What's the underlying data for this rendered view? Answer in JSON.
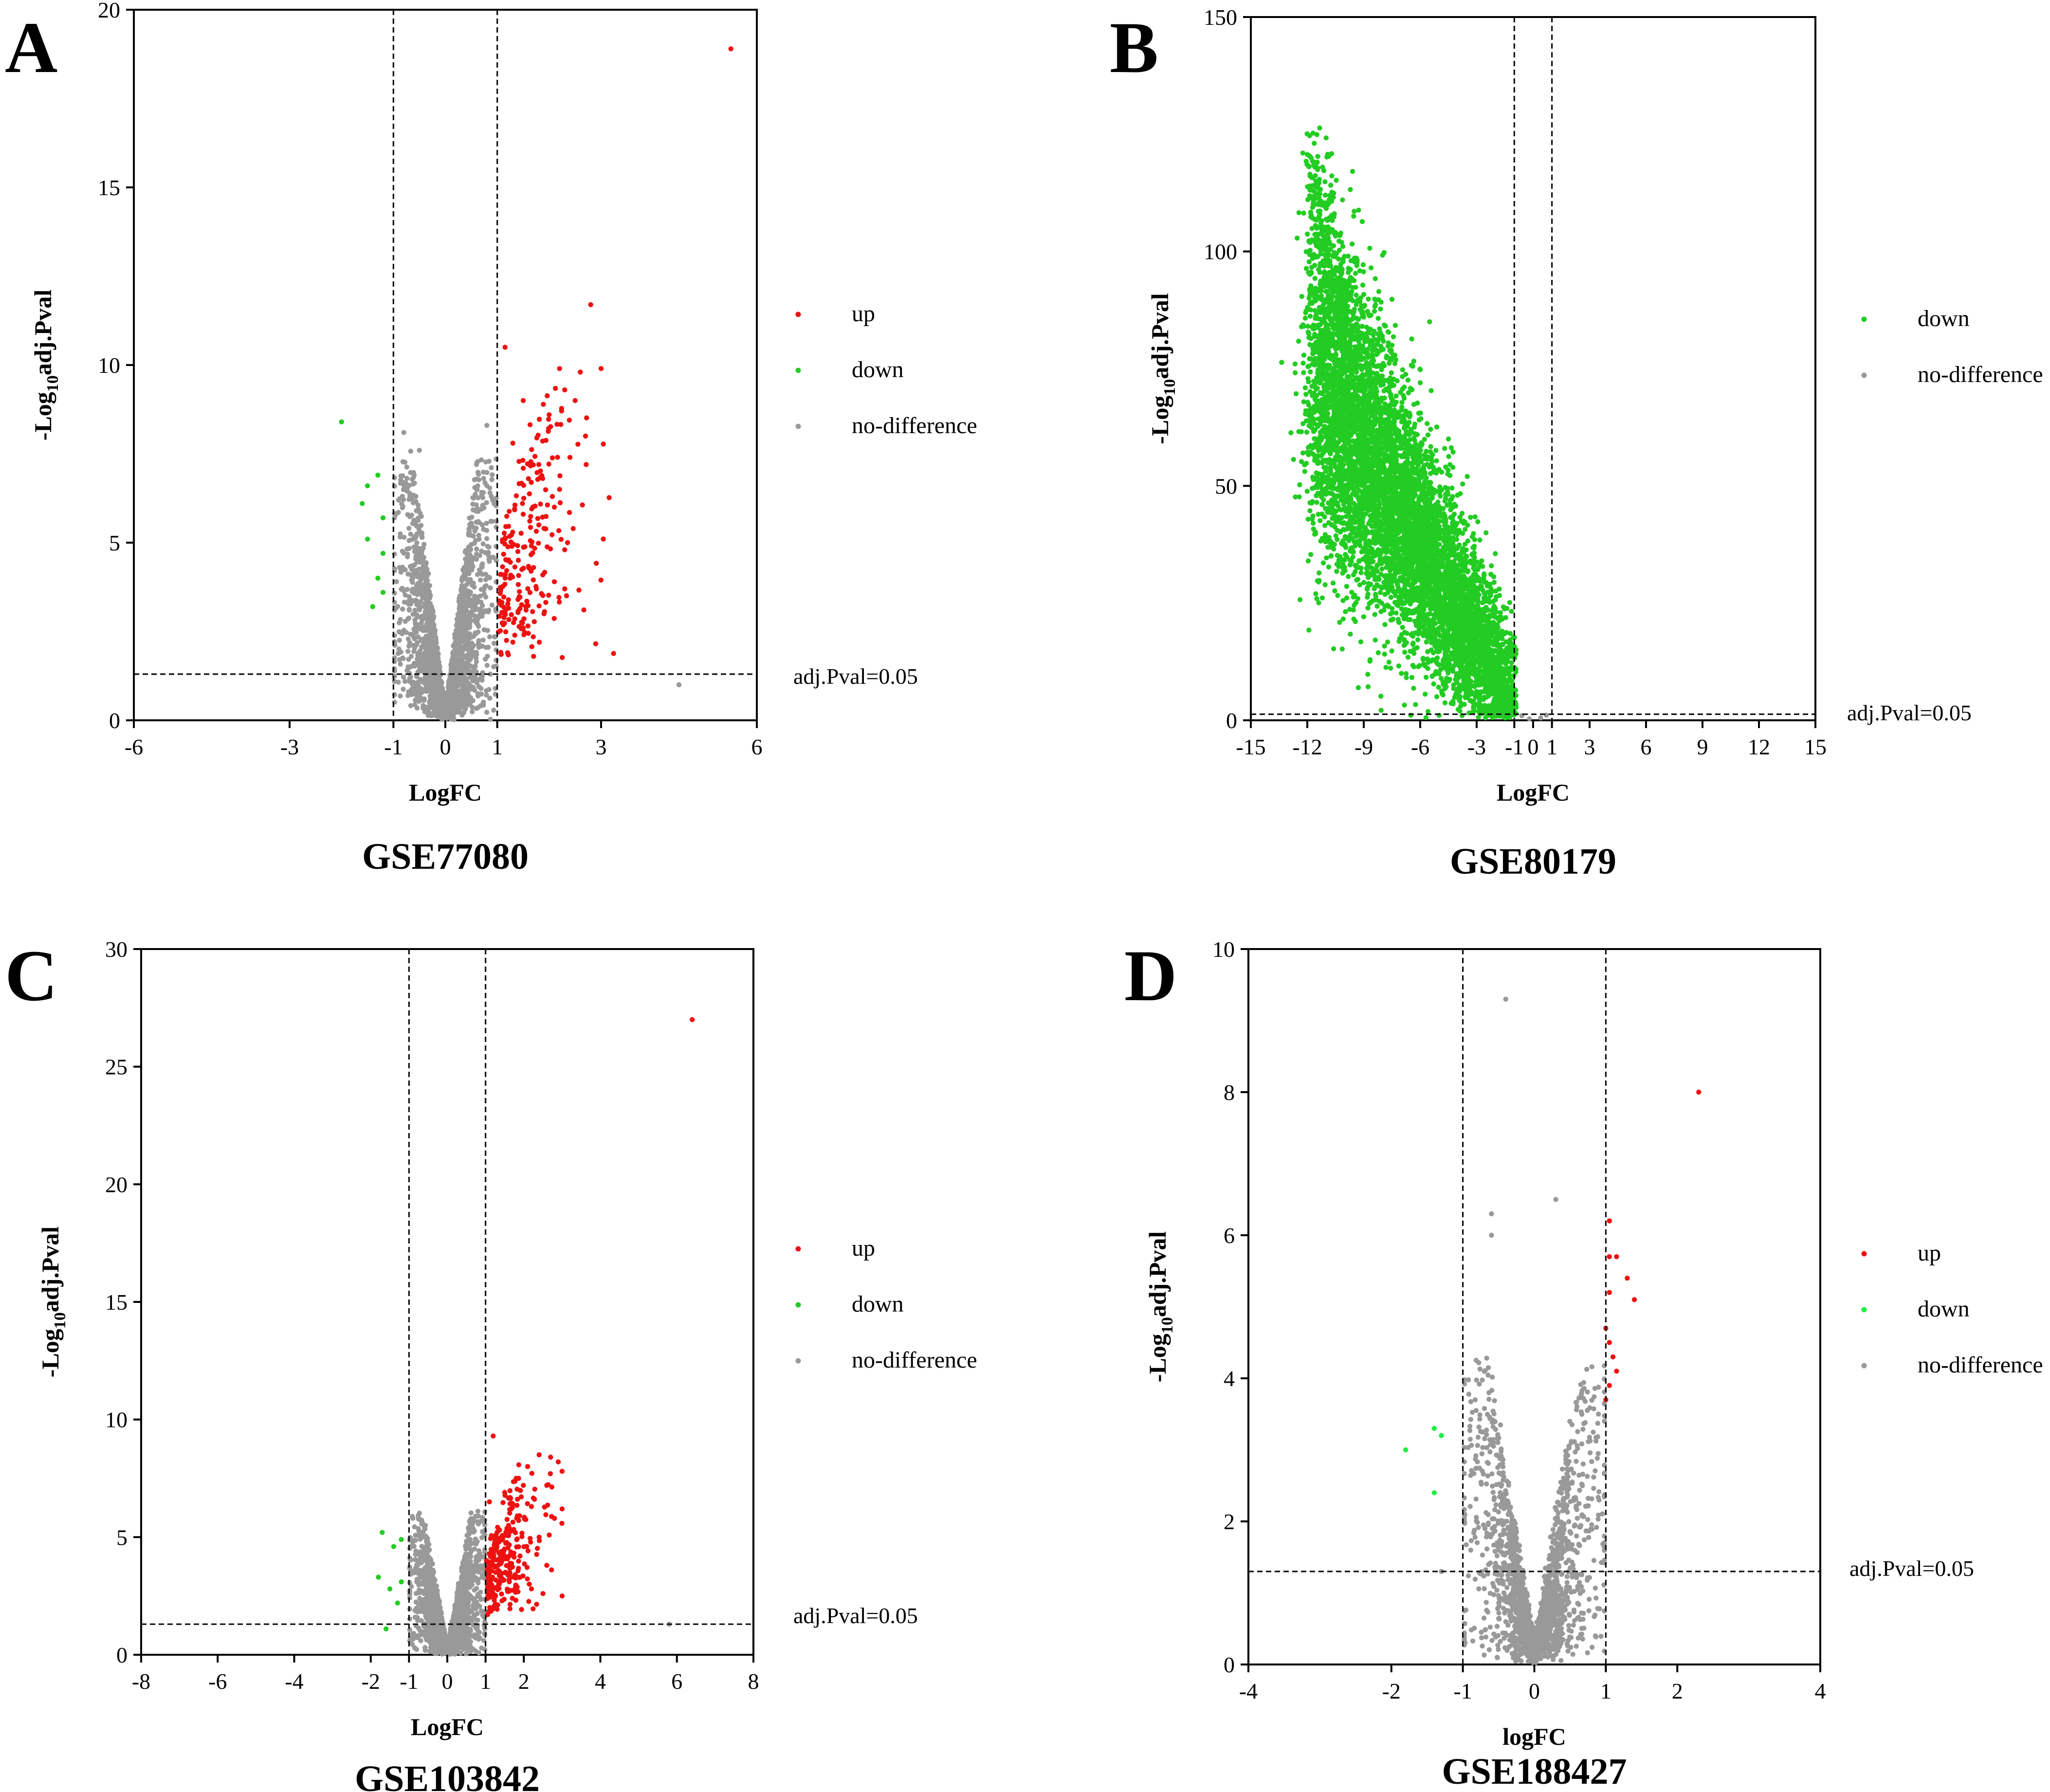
{
  "chart_data": [
    {
      "panel": "A",
      "type": "scatter",
      "subtype": "volcano",
      "title": "GSE77080",
      "xlabel": "LogFC",
      "ylabel_main": "-Log",
      "ylabel_sub": "10",
      "ylabel_tail": "adj.Pval",
      "xlim": [
        -6,
        6
      ],
      "ylim": [
        0,
        20
      ],
      "xticks": [
        -6,
        -3,
        -1,
        0,
        1,
        3,
        6
      ],
      "yticks": [
        0,
        5,
        10,
        15,
        20
      ],
      "fc_threshold_lines": [
        -1,
        1
      ],
      "pval_line": 1.3,
      "pval_label": "adj.Pval=0.05",
      "legend": [
        {
          "label": "up",
          "color": "#ee1111"
        },
        {
          "label": "down",
          "color": "#22cc22"
        },
        {
          "label": "no-difference",
          "color": "#999999"
        }
      ],
      "series": [
        {
          "name": "up",
          "color": "#ee1111",
          "points": [
            [
              5.5,
              18.9
            ],
            [
              2.8,
              11.7
            ],
            [
              3.0,
              9.9
            ],
            [
              1.15,
              10.5
            ],
            [
              2.2,
              9.9
            ],
            [
              2.6,
              9.8
            ],
            [
              2.3,
              9.3
            ],
            [
              2.5,
              9.0
            ],
            [
              1.5,
              9.0
            ],
            [
              2.0,
              8.6
            ],
            [
              2.7,
              8.0
            ],
            [
              2.4,
              7.4
            ],
            [
              1.8,
              7.2
            ],
            [
              1.3,
              7.8
            ],
            [
              1.6,
              6.8
            ],
            [
              2.2,
              6.5
            ],
            [
              2.1,
              6.0
            ],
            [
              1.5,
              5.8
            ],
            [
              1.9,
              5.4
            ],
            [
              2.3,
              4.8
            ],
            [
              1.2,
              4.5
            ],
            [
              1.7,
              4.3
            ],
            [
              2.1,
              3.9
            ],
            [
              2.3,
              3.7
            ],
            [
              1.4,
              3.4
            ],
            [
              1.9,
              3.0
            ],
            [
              1.5,
              2.6
            ],
            [
              1.3,
              2.2
            ],
            [
              1.7,
              1.8
            ],
            [
              1.2,
              1.9
            ]
          ]
        },
        {
          "name": "down",
          "color": "#22cc22",
          "points": [
            [
              -2.0,
              8.4
            ],
            [
              -1.3,
              6.9
            ],
            [
              -1.5,
              6.6
            ],
            [
              -1.6,
              6.1
            ],
            [
              -1.2,
              5.7
            ],
            [
              -1.5,
              5.1
            ],
            [
              -1.2,
              4.7
            ],
            [
              -1.3,
              4.0
            ],
            [
              -1.2,
              3.6
            ],
            [
              -1.4,
              3.2
            ]
          ]
        },
        {
          "name": "no-difference",
          "color": "#999999",
          "points": [
            [
              -0.8,
              8.1
            ],
            [
              -0.5,
              7.6
            ],
            [
              0.8,
              8.3
            ],
            [
              0.6,
              7.2
            ],
            [
              -0.9,
              6.2
            ],
            [
              0.9,
              5.6
            ],
            [
              4.5,
              1.0
            ]
          ]
        }
      ],
      "generate": {
        "ymax": 11.7,
        "n_grey": 2200,
        "n_up": 220,
        "n_down": 12,
        "seed": 11
      }
    },
    {
      "panel": "B",
      "type": "scatter",
      "subtype": "volcano",
      "title": "GSE80179",
      "xlabel": "LogFC",
      "ylabel_main": "-Log",
      "ylabel_sub": "10",
      "ylabel_tail": "adj.Pval",
      "xlim": [
        -15,
        15
      ],
      "ylim": [
        0,
        150
      ],
      "xticks": [
        -15,
        -12,
        -9,
        -6,
        -3,
        -1,
        0,
        1,
        3,
        6,
        9,
        12,
        15
      ],
      "xtick_labels": [
        "-15",
        "-12",
        "-9",
        "-6",
        "-3",
        "-1",
        "0",
        "1",
        "3",
        "6",
        "9",
        "12",
        "15"
      ],
      "yticks": [
        0,
        50,
        100,
        150
      ],
      "fc_threshold_lines": [
        -1,
        1
      ],
      "pval_line": 1.3,
      "pval_label": "adj.Pval=0.05",
      "legend": [
        {
          "label": "down",
          "color": "#22cc22"
        },
        {
          "label": "no-difference",
          "color": "#999999"
        }
      ],
      "series": [
        {
          "name": "down",
          "color": "#22cc22",
          "points": [
            [
              -11.8,
              120
            ],
            [
              -11.6,
              118
            ],
            [
              -11.4,
              110
            ],
            [
              -11.2,
              102
            ],
            [
              -10.8,
              98
            ],
            [
              -10,
              90
            ],
            [
              -9.0,
              86
            ],
            [
              -7.5,
              80
            ],
            [
              -6.0,
              72
            ],
            [
              -4.5,
              60
            ],
            [
              -3.5,
              52
            ],
            [
              -2.5,
              40
            ],
            [
              -1.8,
              28
            ],
            [
              -1.3,
              15
            ],
            [
              -7.0,
              10
            ],
            [
              -4.8,
              12
            ],
            [
              -5.5,
              85
            ],
            [
              -8.5,
              55
            ],
            [
              -10.5,
              68
            ],
            [
              -9.5,
              45
            ]
          ]
        },
        {
          "name": "no-difference",
          "color": "#999999",
          "points": [
            [
              -0.6,
              1.0
            ],
            [
              0.4,
              0.5
            ],
            [
              -0.2,
              0.3
            ],
            [
              0.7,
              1.1
            ]
          ]
        }
      ],
      "generate": {
        "n_green": 7000,
        "seed": 23
      }
    },
    {
      "panel": "C",
      "type": "scatter",
      "subtype": "volcano",
      "title": "GSE103842",
      "xlabel": "LogFC",
      "ylabel_main": "-Log",
      "ylabel_sub": "10",
      "ylabel_tail": "adj.Pval",
      "xlim": [
        -8,
        8
      ],
      "ylim": [
        0,
        30
      ],
      "xticks": [
        -8,
        -6,
        -4,
        -2,
        -1,
        0,
        1,
        2,
        4,
        6,
        8
      ],
      "yticks": [
        0,
        5,
        10,
        15,
        20,
        25,
        30
      ],
      "fc_threshold_lines": [
        -1,
        1
      ],
      "pval_line": 1.3,
      "pval_label": "adj.Pval=0.05",
      "legend": [
        {
          "label": "up",
          "color": "#ee1111"
        },
        {
          "label": "down",
          "color": "#22cc22"
        },
        {
          "label": "no-difference",
          "color": "#999999"
        }
      ],
      "series": [
        {
          "name": "up",
          "color": "#ee1111",
          "points": [
            [
              6.4,
              27.0
            ],
            [
              1.2,
              9.3
            ],
            [
              2.4,
              8.5
            ],
            [
              2.7,
              8.4
            ],
            [
              2.9,
              8.2
            ],
            [
              2.1,
              8.0
            ],
            [
              3.0,
              7.8
            ],
            [
              1.8,
              7.5
            ],
            [
              2.6,
              7.2
            ],
            [
              1.5,
              6.9
            ],
            [
              1.1,
              6.5
            ],
            [
              2.2,
              6.3
            ],
            [
              3.0,
              6.2
            ],
            [
              2.8,
              5.8
            ],
            [
              1.6,
              5.5
            ],
            [
              2.4,
              5.0
            ],
            [
              1.3,
              4.6
            ],
            [
              1.9,
              4.2
            ],
            [
              2.6,
              3.8
            ],
            [
              1.4,
              3.2
            ],
            [
              2.2,
              2.8
            ],
            [
              1.7,
              2.4
            ],
            [
              1.2,
              2.0
            ],
            [
              2.5,
              2.6
            ],
            [
              3.0,
              2.5
            ]
          ]
        },
        {
          "name": "down",
          "color": "#22cc22",
          "points": [
            [
              -1.7,
              5.2
            ],
            [
              -1.4,
              4.6
            ],
            [
              -1.2,
              4.9
            ],
            [
              -1.8,
              3.3
            ],
            [
              -1.5,
              2.8
            ],
            [
              -1.2,
              3.1
            ],
            [
              -1.3,
              2.2
            ],
            [
              -1.6,
              1.1
            ]
          ]
        },
        {
          "name": "no-difference",
          "color": "#999999",
          "points": [
            [
              -0.9,
              5.8
            ],
            [
              0.8,
              6.1
            ],
            [
              -0.6,
              4.4
            ],
            [
              0.6,
              4.9
            ],
            [
              -0.2,
              1.0
            ],
            [
              0.3,
              1.6
            ],
            [
              5.8,
              1.3
            ]
          ]
        }
      ],
      "generate": {
        "ymax": 9.3,
        "n_grey": 2200,
        "n_up": 260,
        "n_down": 10,
        "seed": 37
      }
    },
    {
      "panel": "D",
      "type": "scatter",
      "subtype": "volcano",
      "title": "GSE188427",
      "xlabel": "logFC",
      "ylabel_main": "-Log",
      "ylabel_sub": "10",
      "ylabel_tail": "adj.Pval",
      "xlim": [
        -4,
        4
      ],
      "ylim": [
        0,
        10
      ],
      "xticks": [
        -4,
        -2,
        -1,
        0,
        1,
        2,
        4
      ],
      "yticks": [
        0,
        2,
        4,
        6,
        8,
        10
      ],
      "fc_threshold_lines": [
        -1,
        1
      ],
      "pval_line": 1.3,
      "pval_label": "adj.Pval=0.05",
      "legend": [
        {
          "label": "up",
          "color": "#ee1111"
        },
        {
          "label": "down",
          "color": "#22ee44"
        },
        {
          "label": "no-difference",
          "color": "#999999"
        }
      ],
      "series": [
        {
          "name": "up",
          "color": "#ee1111",
          "points": [
            [
              2.3,
              8.0
            ],
            [
              1.05,
              6.2
            ],
            [
              1.05,
              5.7
            ],
            [
              1.15,
              5.7
            ],
            [
              1.3,
              5.4
            ],
            [
              1.4,
              5.1
            ],
            [
              1.05,
              5.2
            ],
            [
              1.0,
              4.7
            ],
            [
              1.05,
              4.5
            ],
            [
              1.1,
              4.3
            ],
            [
              1.15,
              4.1
            ],
            [
              1.05,
              3.9
            ],
            [
              1.0,
              3.7
            ]
          ]
        },
        {
          "name": "down",
          "color": "#22ee44",
          "points": [
            [
              -1.8,
              3.0
            ],
            [
              -1.4,
              3.3
            ],
            [
              -1.3,
              3.2
            ],
            [
              -1.4,
              2.4
            ]
          ]
        },
        {
          "name": "no-difference",
          "color": "#999999",
          "points": [
            [
              -0.4,
              9.3
            ],
            [
              -0.6,
              6.3
            ],
            [
              -0.6,
              6.0
            ],
            [
              0.3,
              6.5
            ],
            [
              -1.3,
              1.3
            ]
          ]
        }
      ],
      "generate": {
        "ymax": 6.3,
        "n_grey": 1800,
        "n_up": 0,
        "n_down": 0,
        "seed": 53
      }
    }
  ],
  "panel_letters": [
    "A",
    "B",
    "C",
    "D"
  ]
}
